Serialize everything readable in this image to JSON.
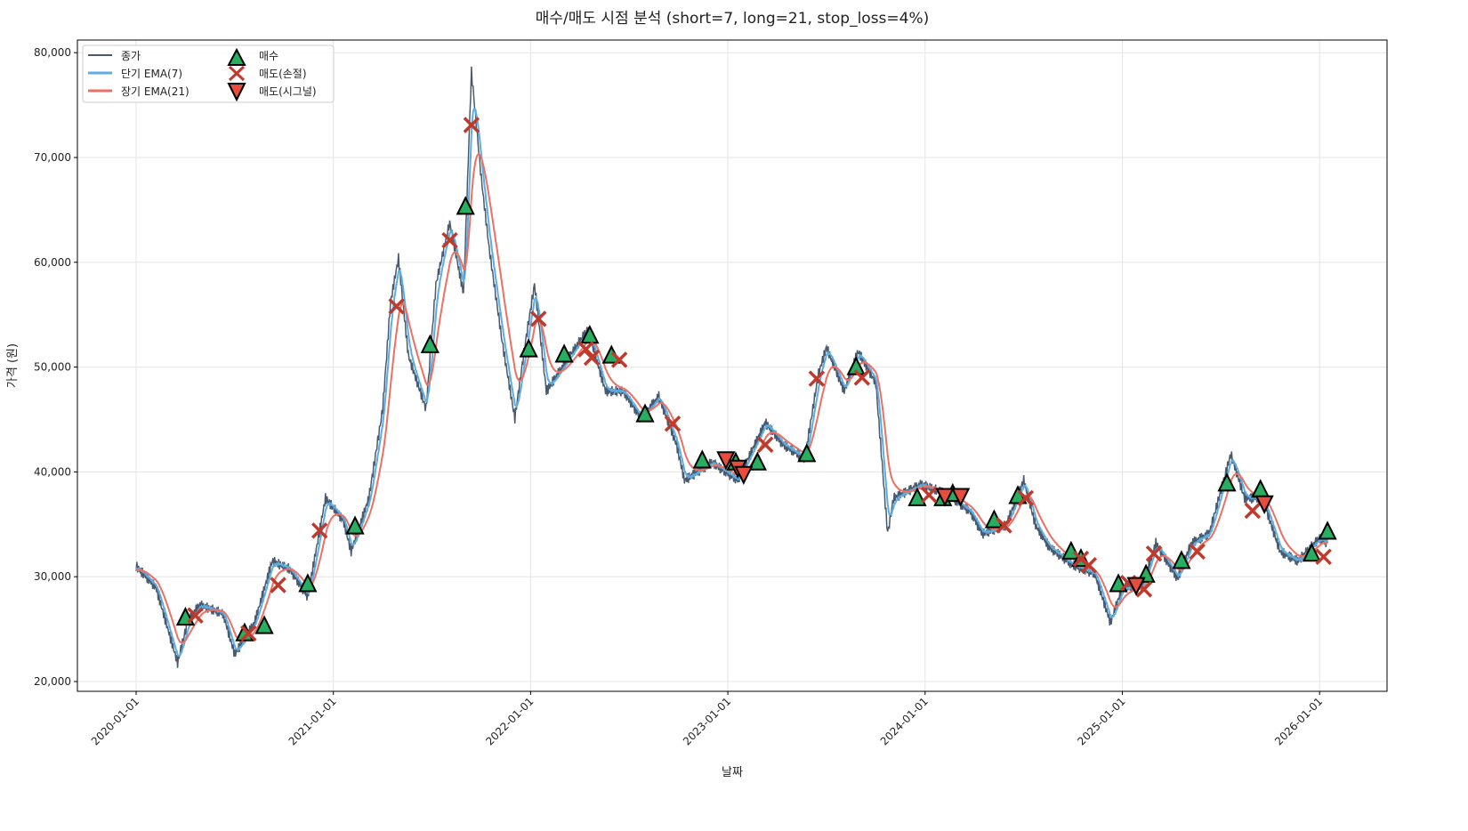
{
  "chart_data": {
    "type": "line",
    "title": "매수/매도 시점 분석 (short=7, long=21, stop_loss=4%)",
    "xlabel": "날짜",
    "ylabel": "가격 (원)",
    "ylim": [
      19000,
      81500
    ],
    "xlim": [
      2019.7,
      2026.35
    ],
    "yticks": [
      20000,
      30000,
      40000,
      50000,
      60000,
      70000,
      80000
    ],
    "ytick_labels": [
      "20,000",
      "30,000",
      "40,000",
      "50,000",
      "60,000",
      "70,000",
      "80,000"
    ],
    "xticks": [
      2020,
      2021,
      2022,
      2023,
      2024,
      2025,
      2026
    ],
    "xtick_labels": [
      "2020-01-01",
      "2021-01-01",
      "2022-01-01",
      "2023-01-01",
      "2024-01-01",
      "2025-01-01",
      "2026-01-01"
    ],
    "grid": true,
    "legend_position": "top-left",
    "legend": [
      "종가",
      "단기 EMA(7)",
      "장기 EMA(21)",
      "매수",
      "매도(손절)",
      "매도(시그널)"
    ],
    "colors": {
      "close": "#4a5a6e",
      "short": "#5dade2",
      "long": "#ec7063",
      "buy": "#27ae60",
      "stop": "#c0392b",
      "signal": "#e74c3c"
    },
    "close": [
      [
        2020.0,
        31000
      ],
      [
        2020.1,
        29000
      ],
      [
        2020.21,
        21800
      ],
      [
        2020.26,
        25600
      ],
      [
        2020.32,
        27300
      ],
      [
        2020.44,
        26500
      ],
      [
        2020.5,
        22600
      ],
      [
        2020.6,
        25600
      ],
      [
        2020.69,
        31500
      ],
      [
        2020.78,
        30700
      ],
      [
        2020.87,
        28100
      ],
      [
        2020.96,
        37500
      ],
      [
        2021.05,
        35400
      ],
      [
        2021.09,
        32400
      ],
      [
        2021.18,
        37500
      ],
      [
        2021.25,
        46000
      ],
      [
        2021.29,
        56200
      ],
      [
        2021.33,
        60400
      ],
      [
        2021.38,
        51100
      ],
      [
        2021.47,
        46000
      ],
      [
        2021.52,
        57900
      ],
      [
        2021.59,
        63800
      ],
      [
        2021.66,
        57000
      ],
      [
        2021.7,
        78200
      ],
      [
        2021.75,
        68000
      ],
      [
        2021.79,
        61300
      ],
      [
        2021.86,
        51900
      ],
      [
        2021.92,
        45100
      ],
      [
        2021.97,
        51900
      ],
      [
        2022.02,
        57900
      ],
      [
        2022.08,
        47700
      ],
      [
        2022.2,
        51100
      ],
      [
        2022.29,
        53600
      ],
      [
        2022.38,
        47700
      ],
      [
        2022.47,
        47700
      ],
      [
        2022.56,
        45100
      ],
      [
        2022.65,
        47200
      ],
      [
        2022.74,
        42600
      ],
      [
        2022.78,
        39200
      ],
      [
        2022.92,
        40900
      ],
      [
        2023.05,
        39200
      ],
      [
        2023.19,
        44700
      ],
      [
        2023.28,
        42600
      ],
      [
        2023.39,
        41300
      ],
      [
        2023.46,
        49400
      ],
      [
        2023.5,
        51900
      ],
      [
        2023.59,
        47700
      ],
      [
        2023.66,
        51500
      ],
      [
        2023.75,
        48500
      ],
      [
        2023.81,
        34100
      ],
      [
        2023.84,
        37500
      ],
      [
        2023.98,
        38800
      ],
      [
        2024.11,
        37900
      ],
      [
        2024.23,
        36200
      ],
      [
        2024.29,
        34100
      ],
      [
        2024.41,
        34900
      ],
      [
        2024.5,
        39200
      ],
      [
        2024.56,
        34900
      ],
      [
        2024.63,
        32800
      ],
      [
        2024.75,
        31100
      ],
      [
        2024.86,
        30300
      ],
      [
        2024.94,
        25600
      ],
      [
        2025.0,
        29000
      ],
      [
        2025.1,
        29000
      ],
      [
        2025.17,
        33200
      ],
      [
        2025.28,
        29800
      ],
      [
        2025.35,
        33200
      ],
      [
        2025.44,
        34100
      ],
      [
        2025.55,
        41700
      ],
      [
        2025.62,
        37500
      ],
      [
        2025.71,
        37500
      ],
      [
        2025.8,
        32400
      ],
      [
        2025.89,
        31500
      ],
      [
        2026.0,
        33700
      ],
      [
        2026.04,
        33200
      ]
    ],
    "buy": [
      [
        2020.25,
        26100
      ],
      [
        2020.55,
        24600
      ],
      [
        2020.65,
        25300
      ],
      [
        2020.87,
        29300
      ],
      [
        2021.11,
        34800
      ],
      [
        2021.49,
        52100
      ],
      [
        2021.67,
        65300
      ],
      [
        2021.99,
        51700
      ],
      [
        2022.17,
        51200
      ],
      [
        2022.3,
        53000
      ],
      [
        2022.41,
        51100
      ],
      [
        2022.58,
        45500
      ],
      [
        2022.87,
        41100
      ],
      [
        2023.04,
        40900
      ],
      [
        2023.15,
        40900
      ],
      [
        2023.4,
        41700
      ],
      [
        2023.65,
        50000
      ],
      [
        2023.96,
        37500
      ],
      [
        2024.09,
        37500
      ],
      [
        2024.14,
        37900
      ],
      [
        2024.35,
        35400
      ],
      [
        2024.47,
        37700
      ],
      [
        2024.74,
        32400
      ],
      [
        2024.79,
        31700
      ],
      [
        2024.98,
        29300
      ],
      [
        2025.12,
        30200
      ],
      [
        2025.3,
        31500
      ],
      [
        2025.53,
        38900
      ],
      [
        2025.7,
        38300
      ],
      [
        2025.96,
        32200
      ],
      [
        2026.04,
        34300
      ]
    ],
    "sell_stop": [
      [
        2020.3,
        26300
      ],
      [
        2020.57,
        24600
      ],
      [
        2020.72,
        29200
      ],
      [
        2020.93,
        34400
      ],
      [
        2021.32,
        55800
      ],
      [
        2021.59,
        62100
      ],
      [
        2021.7,
        73100
      ],
      [
        2022.04,
        54600
      ],
      [
        2022.28,
        51700
      ],
      [
        2022.31,
        50900
      ],
      [
        2022.45,
        50700
      ],
      [
        2022.72,
        44600
      ],
      [
        2023.19,
        42600
      ],
      [
        2023.45,
        48900
      ],
      [
        2023.68,
        49000
      ],
      [
        2024.02,
        37800
      ],
      [
        2024.4,
        34900
      ],
      [
        2024.51,
        37500
      ],
      [
        2024.79,
        31700
      ],
      [
        2024.83,
        31100
      ],
      [
        2025.03,
        29400
      ],
      [
        2025.11,
        28800
      ],
      [
        2025.16,
        32200
      ],
      [
        2025.38,
        32400
      ],
      [
        2025.66,
        36300
      ],
      [
        2026.02,
        31900
      ]
    ],
    "sell_signal": [
      [
        2022.99,
        41200
      ],
      [
        2023.05,
        40400
      ],
      [
        2023.08,
        39800
      ],
      [
        2024.1,
        37700
      ],
      [
        2024.18,
        37700
      ],
      [
        2025.07,
        29200
      ],
      [
        2025.72,
        37000
      ]
    ]
  }
}
